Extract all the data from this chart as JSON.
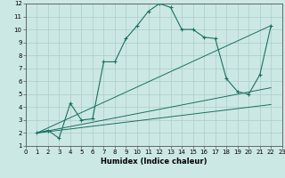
{
  "xlabel": "Humidex (Indice chaleur)",
  "xlim": [
    0,
    23
  ],
  "ylim": [
    1,
    12
  ],
  "xticks": [
    0,
    1,
    2,
    3,
    4,
    5,
    6,
    7,
    8,
    9,
    10,
    11,
    12,
    13,
    14,
    15,
    16,
    17,
    18,
    19,
    20,
    21,
    22,
    23
  ],
  "yticks": [
    1,
    2,
    3,
    4,
    5,
    6,
    7,
    8,
    9,
    10,
    11,
    12
  ],
  "background_color": "#cce8e4",
  "grid_color": "#aacccc",
  "line_color": "#1a7060",
  "series": [
    {
      "x": [
        1,
        2,
        3,
        4,
        5,
        6,
        7,
        8,
        9,
        10,
        11,
        12,
        13,
        14,
        15,
        16,
        17,
        18,
        19,
        20,
        21,
        22
      ],
      "y": [
        2.0,
        2.2,
        1.6,
        4.3,
        3.0,
        3.1,
        7.5,
        7.5,
        9.3,
        10.3,
        11.4,
        12.0,
        11.7,
        10.0,
        10.0,
        9.4,
        9.3,
        6.2,
        5.2,
        5.0,
        6.5,
        10.3
      ]
    },
    {
      "x": [
        1,
        22
      ],
      "y": [
        2.0,
        10.3
      ]
    },
    {
      "x": [
        1,
        22
      ],
      "y": [
        2.0,
        5.5
      ]
    },
    {
      "x": [
        1,
        22
      ],
      "y": [
        2.0,
        4.2
      ]
    }
  ]
}
